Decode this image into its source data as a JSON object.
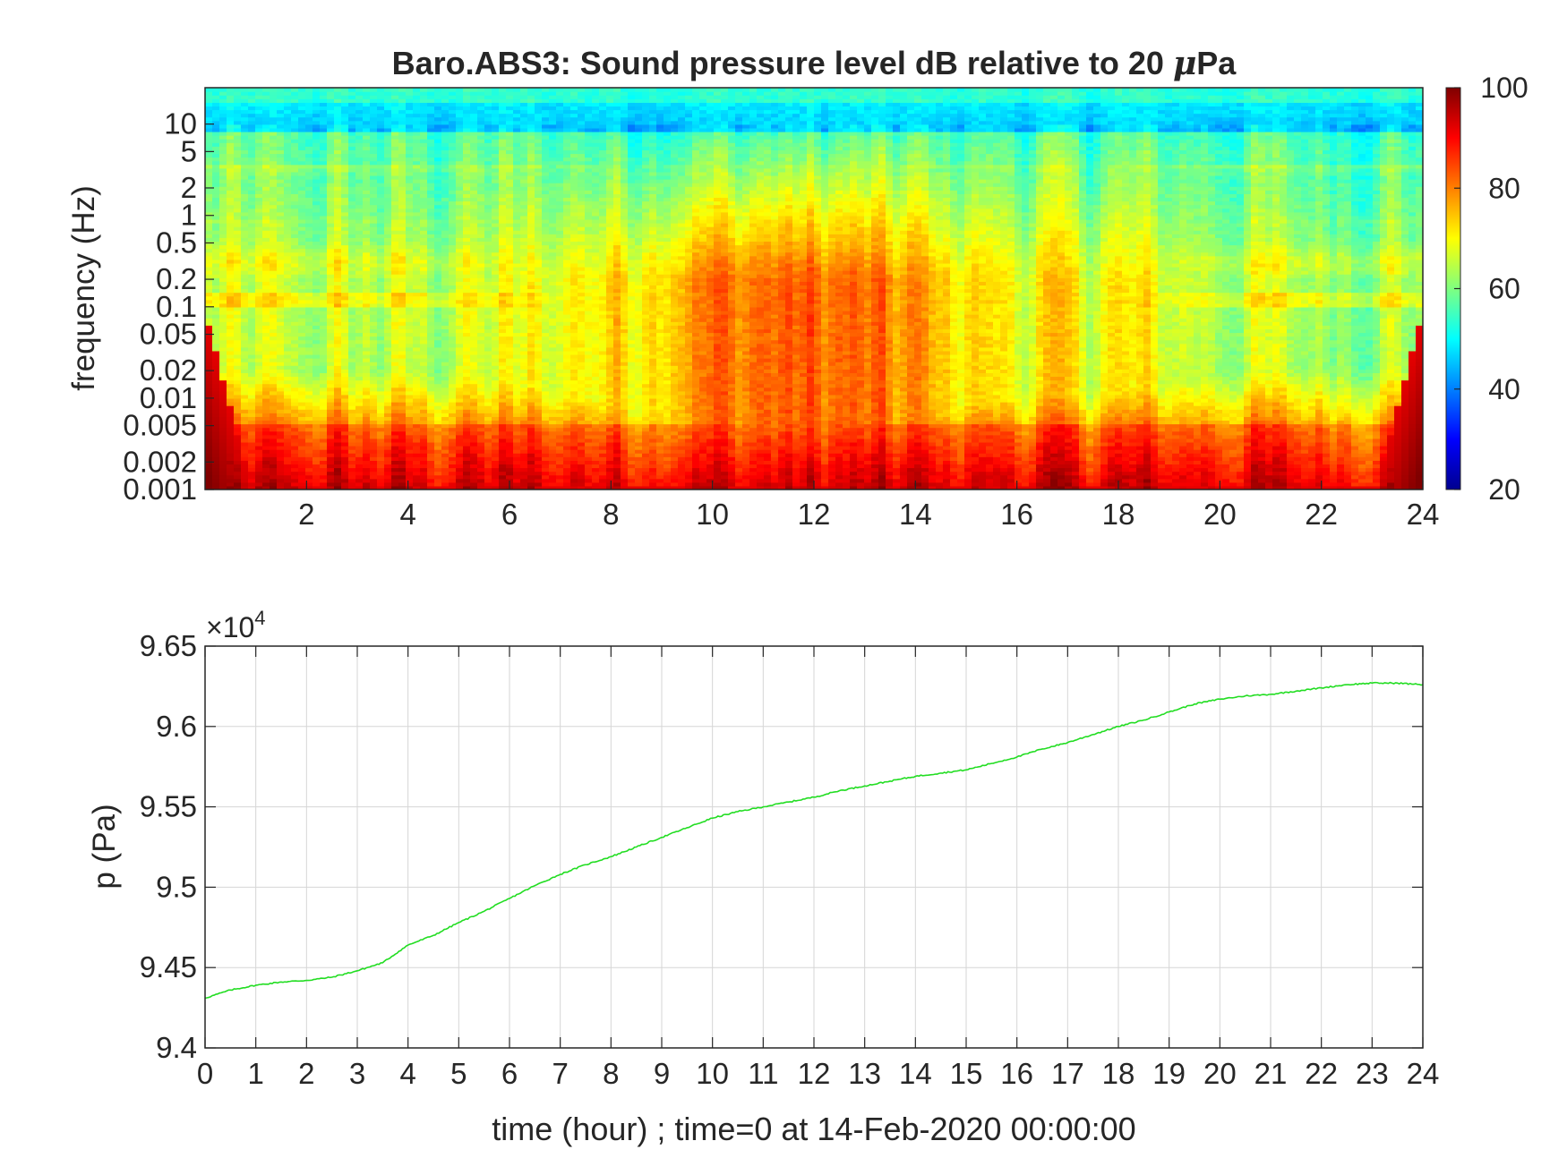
{
  "chart_data": [
    {
      "type": "heatmap",
      "title_prefix": "Baro.ABS3: Sound pressure level dB relative to 20 ",
      "title_mu": "μ",
      "title_suffix": "Pa",
      "ylabel": "frequency (Hz)",
      "xlabel": "",
      "y_scale": "log",
      "xlim": [
        0,
        24
      ],
      "ylim": [
        0.001,
        25
      ],
      "x_ticks": [
        2,
        4,
        6,
        8,
        10,
        12,
        14,
        16,
        18,
        20,
        22,
        24
      ],
      "x_tick_labels": [
        "2",
        "4",
        "6",
        "8",
        "10",
        "12",
        "14",
        "16",
        "18",
        "20",
        "22",
        "24"
      ],
      "y_ticks": [
        0.001,
        0.002,
        0.005,
        0.01,
        0.02,
        0.05,
        0.1,
        0.2,
        0.5,
        1,
        2,
        5,
        10
      ],
      "y_tick_labels": [
        "0.001",
        "0.002",
        "0.005",
        "0.01",
        "0.02",
        "0.05",
        "0.1",
        "0.2",
        "0.5",
        "1",
        "2",
        "5",
        "10"
      ],
      "colormap": "jet",
      "colorbar": {
        "range": [
          20,
          100
        ],
        "ticks": [
          20,
          40,
          60,
          80,
          100
        ],
        "tick_labels": [
          "20",
          "40",
          "60",
          "80",
          "100"
        ],
        "placement": "right"
      },
      "grid": false
    },
    {
      "type": "line",
      "title": "",
      "xlabel": "time (hour) ; time=0 at 14-Feb-2020 00:00:00",
      "ylabel": "p (Pa)",
      "exponent_label": "×10",
      "exponent_power": "4",
      "xlim": [
        0,
        24
      ],
      "ylim": [
        94000,
        96500
      ],
      "x_ticks": [
        0,
        1,
        2,
        3,
        4,
        5,
        6,
        7,
        8,
        9,
        10,
        11,
        12,
        13,
        14,
        15,
        16,
        17,
        18,
        19,
        20,
        21,
        22,
        23,
        24
      ],
      "x_tick_labels": [
        "0",
        "1",
        "2",
        "3",
        "4",
        "5",
        "6",
        "7",
        "8",
        "9",
        "10",
        "11",
        "12",
        "13",
        "14",
        "15",
        "16",
        "17",
        "18",
        "19",
        "20",
        "21",
        "22",
        "23",
        "24"
      ],
      "y_ticks": [
        94000,
        94500,
        95000,
        95500,
        96000,
        96500
      ],
      "y_tick_labels": [
        "9.4",
        "9.45",
        "9.5",
        "9.55",
        "9.6",
        "9.65"
      ],
      "grid": true,
      "line_color": "#22dd22",
      "x": [
        0,
        0.5,
        1,
        1.5,
        2,
        2.5,
        3,
        3.5,
        4,
        4.5,
        5,
        5.5,
        6,
        6.5,
        7,
        7.5,
        8,
        8.5,
        9,
        9.5,
        10,
        10.5,
        11,
        11.5,
        12,
        12.5,
        13,
        13.5,
        14,
        14.5,
        15,
        15.5,
        16,
        16.5,
        17,
        17.5,
        18,
        18.5,
        19,
        19.5,
        20,
        20.5,
        21,
        21.5,
        22,
        22.5,
        23,
        23.5,
        24
      ],
      "y": [
        94310,
        94360,
        94390,
        94410,
        94420,
        94440,
        94480,
        94530,
        94640,
        94700,
        94780,
        94850,
        94930,
        95010,
        95080,
        95140,
        95190,
        95250,
        95310,
        95370,
        95430,
        95470,
        95500,
        95530,
        95560,
        95600,
        95630,
        95660,
        95690,
        95710,
        95730,
        95770,
        95810,
        95860,
        95900,
        95950,
        96000,
        96040,
        96090,
        96140,
        96170,
        96190,
        96200,
        96220,
        96240,
        96260,
        96270,
        96270,
        96260
      ]
    }
  ]
}
